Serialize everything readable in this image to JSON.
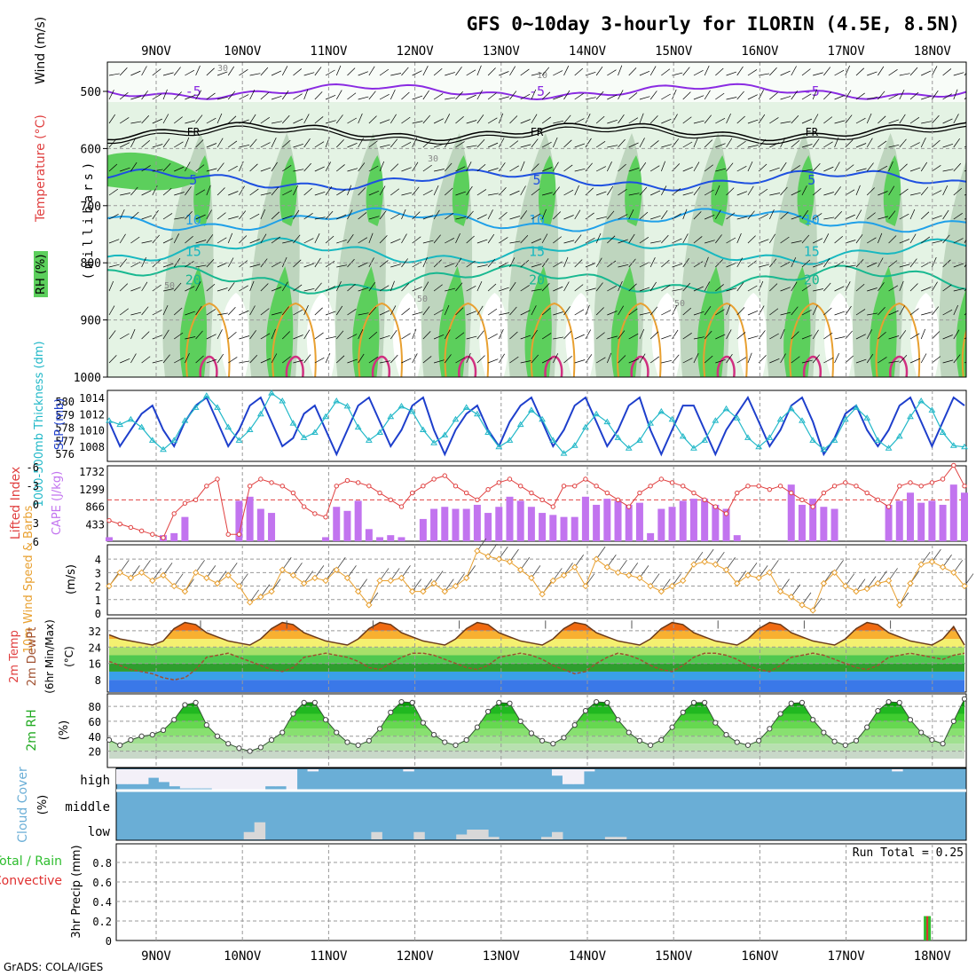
{
  "title": "GFS 0~10day 3-hourly for ILORIN (4.5E, 8.5N)",
  "credit": "GrADS: COLA/IGES",
  "date_labels": [
    "9NOV",
    "10NOV",
    "11NOV",
    "12NOV",
    "13NOV",
    "14NOV",
    "15NOV",
    "16NOV",
    "17NOV",
    "18NOV"
  ],
  "colors": {
    "rh_light": "#e4f3e4",
    "rh_mid": "#b9d2b9",
    "rh_green": "#5ccf5c",
    "slp": "#1e3fcc",
    "thickness": "#22b8c8",
    "lifted": "#e04040",
    "cape": "#c274ef",
    "wind": "#e8a030",
    "rh2m": "#22aa22",
    "cloud": "#6aaed6",
    "cloud_low": "#d8d8d8",
    "precip_total": "#2ebd2e",
    "precip_conv": "#e03030"
  },
  "panels": {
    "upper": {
      "ylabel_rh": "RH (%)",
      "ylabel_temp": "Temperature (°C)",
      "ylabel_wind": "Wind (m/s)",
      "ylabel_p": "(millibars)",
      "yticks": [
        "500",
        "600",
        "700",
        "800",
        "900",
        "1000"
      ],
      "isotherms": [
        {
          "label": "-5",
          "color": "#8a2be2",
          "mean_p": 500
        },
        {
          "label": "FR",
          "color": "#000000",
          "mean_p": 570
        },
        {
          "label": "5",
          "color": "#1e50e0",
          "mean_p": 655
        },
        {
          "label": "10",
          "color": "#1fa0e8",
          "mean_p": 725
        },
        {
          "label": "15",
          "color": "#18b8c0",
          "mean_p": 780
        },
        {
          "label": "20",
          "color": "#18b890",
          "mean_p": 830
        }
      ],
      "rh_labels": [
        "30",
        "10",
        "50",
        "30",
        "50",
        "50"
      ]
    },
    "slp": {
      "ylabel_left": "1000-500mb Thickness (dm)",
      "ylabel_right": "SLP (mb)",
      "thick_ticks": [
        "580",
        "579",
        "578",
        "577",
        "576"
      ],
      "slp_ticks": [
        "1014",
        "1012",
        "1010",
        "1008"
      ]
    },
    "cape": {
      "ylabel_left": "Lifted Index",
      "ylabel_right": "CAPE (J/kg)",
      "li_ticks": [
        "-6",
        "-3",
        "0",
        "3",
        "6"
      ],
      "cape_ticks": [
        "1732",
        "1299",
        "866",
        "433"
      ]
    },
    "wind10": {
      "ylabel": "10m Wind Speed & Barbs",
      "unit": "(m/s)",
      "yticks": [
        "4",
        "3",
        "2",
        "1",
        "0"
      ]
    },
    "temp2m": {
      "ylabel1": "2m Temp",
      "ylabel2": "2m DewPt",
      "ylabel3": "(6hr Min/Max)",
      "unit": "(°C)",
      "yticks": [
        "32",
        "24",
        "16",
        "8"
      ]
    },
    "rh2m": {
      "ylabel": "2m RH",
      "unit": "(%)",
      "yticks": [
        "80",
        "60",
        "40",
        "20"
      ]
    },
    "cloud": {
      "ylabel": "Cloud Cover",
      "unit": "(%)",
      "levels": [
        "high",
        "middle",
        "low"
      ]
    },
    "precip": {
      "ylabel1": "Total / Rain",
      "ylabel2": "Convective",
      "ylabel3": "3hr Precip (mm)",
      "yticks": [
        "0.8",
        "0.6",
        "0.4",
        "0.2",
        "0"
      ],
      "run_total": "Run Total = 0.25"
    }
  },
  "chart_data": {
    "type": "meteogram",
    "location": "ILORIN (4.5E, 8.5N)",
    "days": [
      "9NOV",
      "10NOV",
      "11NOV",
      "12NOV",
      "13NOV",
      "14NOV",
      "15NOV",
      "16NOV",
      "17NOV",
      "18NOV"
    ],
    "slp_mb": [
      1011,
      1008,
      1010,
      1012,
      1013,
      1010,
      1008,
      1011,
      1013,
      1014,
      1011,
      1008,
      1010,
      1013,
      1014,
      1011,
      1008,
      1009,
      1012,
      1013,
      1010,
      1007,
      1010,
      1013,
      1014,
      1011,
      1008,
      1010,
      1013,
      1014,
      1010,
      1007,
      1010,
      1012,
      1013,
      1010,
      1008,
      1011,
      1013,
      1014,
      1011,
      1008,
      1010,
      1013,
      1014,
      1011,
      1008,
      1010,
      1013,
      1014,
      1010,
      1007,
      1010,
      1013,
      1013,
      1010,
      1007,
      1010,
      1012,
      1014,
      1011,
      1008,
      1010,
      1013,
      1014,
      1011,
      1007,
      1009,
      1012,
      1013,
      1010,
      1008,
      1010,
      1013,
      1014,
      1011,
      1008,
      1011,
      1014,
      1013
    ],
    "thickness_dm": [
      578.5,
      578.2,
      578.6,
      578,
      577,
      576.3,
      577,
      578.5,
      579.5,
      580.4,
      579.5,
      578,
      577,
      577.8,
      579,
      580.6,
      580,
      578.3,
      577.2,
      577.6,
      578.8,
      580,
      579.6,
      578,
      577,
      577.6,
      578.8,
      579.6,
      579.2,
      577.8,
      576.8,
      577.4,
      578.6,
      579.5,
      579,
      577.6,
      576.5,
      577,
      578.2,
      579.3,
      578.6,
      577,
      576,
      576.6,
      578,
      579,
      578.4,
      577.2,
      576.4,
      577,
      578.3,
      579.2,
      578.6,
      577.3,
      576.4,
      577,
      578.5,
      579.4,
      578.7,
      577.2,
      576.5,
      577.2,
      578.6,
      579.4,
      578.5,
      577,
      576.3,
      577,
      578.6,
      579.5,
      578.7,
      577,
      576.4,
      577.3,
      578.8,
      580,
      579.3,
      577.6,
      576.6,
      576.5
    ],
    "lifted_index": [
      3,
      3.5,
      4,
      4.5,
      5,
      5.5,
      2,
      0.5,
      0,
      -2,
      -3,
      5,
      5,
      -2,
      -3,
      -2.5,
      -2,
      -1,
      1,
      2,
      2.5,
      -2,
      -2.8,
      -2.5,
      -2,
      -1,
      0,
      1,
      -1,
      -2,
      -3,
      -3.5,
      -2,
      -1,
      0,
      -1.5,
      -2.5,
      -3,
      -2,
      -1,
      0,
      1,
      -2,
      -2,
      -3,
      -2,
      -1,
      0,
      1,
      -1,
      -2,
      -3,
      -2.5,
      -2,
      -1,
      0,
      1,
      2,
      -1,
      -2,
      -2,
      -1.5,
      -2,
      -1,
      0,
      1,
      -1,
      -2,
      -2.5,
      -2,
      -1,
      0,
      1,
      -2,
      -2.5,
      -2,
      -2.5,
      -3,
      -5,
      -2
    ],
    "cape_jkg": [
      100,
      0,
      0,
      0,
      0,
      150,
      200,
      600,
      0,
      0,
      0,
      0,
      1000,
      1100,
      800,
      700,
      0,
      0,
      0,
      0,
      100,
      850,
      750,
      1000,
      300,
      100,
      150,
      100,
      0,
      550,
      800,
      850,
      800,
      800,
      900,
      700,
      850,
      1100,
      1000,
      850,
      700,
      650,
      600,
      600,
      1100,
      900,
      1050,
      1000,
      900,
      950,
      200,
      800,
      850,
      1000,
      1050,
      1050,
      900,
      800,
      150,
      0,
      0,
      0,
      0,
      1400,
      900,
      1050,
      850,
      800,
      0,
      0,
      0,
      0,
      900,
      1000,
      1200,
      950,
      1000,
      900,
      1400,
      1200
    ],
    "wind10m_ms": [
      2,
      3,
      2.6,
      3,
      2.4,
      2.8,
      2,
      1.6,
      3,
      2.6,
      2.2,
      2.8,
      2,
      0.8,
      1.2,
      1.6,
      3.2,
      2.8,
      2.2,
      2.6,
      2.4,
      3.2,
      2.6,
      1.6,
      0.6,
      2.4,
      2.4,
      2.6,
      1.6,
      1.6,
      2.2,
      1.6,
      2,
      2.6,
      4.6,
      4.2,
      4,
      3.8,
      3.2,
      2.6,
      1.4,
      2.4,
      2.8,
      3.4,
      2,
      4,
      3.4,
      3,
      2.8,
      2.6,
      2,
      1.6,
      2,
      2.4,
      3.6,
      3.8,
      3.6,
      3.2,
      2.2,
      2.8,
      2.6,
      3,
      1.6,
      1.2,
      0.6,
      0.2,
      2.2,
      3,
      2,
      1.6,
      1.8,
      2.2,
      2.4,
      0.6,
      2.2,
      3.6,
      3.8,
      3.4,
      3,
      2
    ],
    "temp2m_c": [
      30,
      28,
      27,
      26,
      25,
      27,
      33,
      36,
      35,
      31,
      29,
      27,
      26,
      25,
      28,
      33,
      36,
      35,
      31,
      29,
      27,
      26,
      25,
      28,
      33,
      36,
      35,
      31,
      29,
      27,
      26,
      25,
      28,
      33,
      36,
      35,
      31,
      29,
      27,
      26,
      25,
      28,
      33,
      36,
      35,
      31,
      29,
      27,
      26,
      25,
      28,
      33,
      36,
      35,
      31,
      29,
      27,
      26,
      25,
      28,
      33,
      36,
      35,
      31,
      29,
      27,
      26,
      25,
      28,
      33,
      36,
      35,
      31,
      29,
      27,
      26,
      25,
      28,
      34,
      25
    ],
    "dewpt2m_c": [
      17,
      15,
      13,
      12,
      11,
      9,
      8,
      9,
      13,
      19,
      20,
      21,
      19,
      17,
      15,
      13,
      12,
      14,
      19,
      20,
      21,
      20,
      19,
      17,
      14,
      13,
      16,
      19,
      21,
      21,
      20,
      18,
      16,
      14,
      13,
      15,
      19,
      20,
      21,
      20,
      18,
      15,
      13,
      11,
      12,
      16,
      19,
      21,
      20,
      18,
      15,
      13,
      12,
      15,
      19,
      21,
      21,
      20,
      18,
      15,
      13,
      12,
      15,
      19,
      20,
      21,
      20,
      18,
      16,
      14,
      13,
      15,
      19,
      20,
      21,
      20,
      19,
      18,
      20,
      21
    ],
    "rh2m_pct": [
      35,
      28,
      35,
      40,
      42,
      48,
      62,
      82,
      85,
      55,
      40,
      30,
      24,
      20,
      25,
      35,
      45,
      70,
      85,
      85,
      62,
      45,
      32,
      28,
      34,
      50,
      72,
      86,
      85,
      58,
      42,
      32,
      28,
      35,
      52,
      73,
      85,
      84,
      60,
      44,
      34,
      30,
      38,
      55,
      74,
      86,
      85,
      62,
      45,
      34,
      28,
      35,
      52,
      72,
      85,
      85,
      58,
      42,
      32,
      28,
      34,
      50,
      70,
      84,
      85,
      62,
      45,
      33,
      28,
      34,
      52,
      74,
      86,
      85,
      62,
      45,
      35,
      30,
      60,
      90
    ],
    "cloud_high_pct": [
      30,
      30,
      30,
      60,
      40,
      20,
      10,
      10,
      10,
      5,
      0,
      0,
      0,
      0,
      20,
      20,
      0,
      100,
      90,
      100,
      100,
      100,
      100,
      100,
      100,
      100,
      100,
      90,
      100,
      100,
      100,
      100,
      100,
      100,
      100,
      100,
      100,
      100,
      100,
      100,
      100,
      70,
      30,
      30,
      90,
      100,
      100,
      100,
      100,
      100,
      100,
      100,
      100,
      100,
      100,
      100,
      100,
      100,
      100,
      100,
      100,
      100,
      100,
      100,
      100,
      100,
      100,
      100,
      100,
      100,
      100,
      100,
      100,
      90,
      100,
      100,
      100,
      100,
      100,
      100
    ],
    "cloud_mid_pct": [
      0,
      0,
      0,
      0,
      0,
      0,
      0,
      0,
      0,
      0,
      0,
      0,
      0,
      0,
      0,
      0,
      0,
      0,
      0,
      0,
      0,
      0,
      0,
      0,
      0,
      0,
      0,
      0,
      0,
      0,
      0,
      0,
      0,
      0,
      0,
      0,
      0,
      0,
      0,
      0,
      0,
      0,
      0,
      0,
      0,
      0,
      0,
      0,
      0,
      0,
      0,
      0,
      0,
      0,
      0,
      0,
      0,
      0,
      0,
      0,
      0,
      0,
      0,
      0,
      0,
      0,
      0,
      0,
      0,
      0,
      0,
      0,
      0,
      0,
      0,
      0,
      0,
      0,
      0,
      0
    ],
    "cloud_low_pct": [
      0,
      0,
      0,
      0,
      0,
      0,
      0,
      0,
      0,
      0,
      0,
      0,
      15,
      35,
      0,
      0,
      0,
      0,
      0,
      0,
      0,
      0,
      0,
      0,
      15,
      0,
      0,
      0,
      15,
      0,
      0,
      0,
      10,
      20,
      20,
      5,
      0,
      0,
      0,
      0,
      5,
      15,
      0,
      0,
      0,
      0,
      5,
      5,
      0,
      0,
      0,
      0,
      0,
      0,
      0,
      0,
      0,
      0,
      0,
      0,
      0,
      0,
      0,
      0,
      0,
      0,
      0,
      0,
      0,
      0,
      0,
      0,
      0,
      0,
      0,
      0,
      0,
      0,
      0,
      0
    ],
    "precip_3hr_mm": {
      "index": 76,
      "total": 0.25,
      "convective": 0.25
    }
  }
}
